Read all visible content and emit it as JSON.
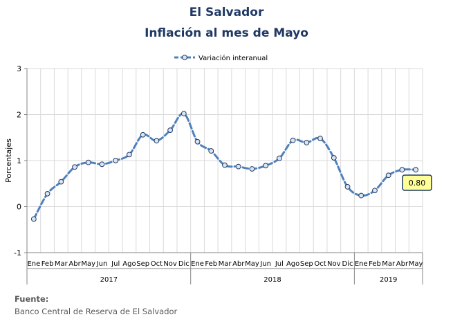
{
  "header": {
    "title": "El Salvador",
    "subtitle": "Inflación al mes de Mayo"
  },
  "footer": {
    "source_label": "Fuente:",
    "source_text": "Banco Central de Reserva de El Salvador"
  },
  "chart_data": {
    "type": "line",
    "ylabel": "Porcentajes",
    "ylim": [
      -1,
      3
    ],
    "yticks": [
      "-1",
      "0",
      "1",
      "2",
      "3"
    ],
    "grid": true,
    "legend_position": "top-center",
    "categories": [
      "Ene",
      "Feb",
      "Mar",
      "Abr",
      "May",
      "Jun",
      "Jul",
      "Ago",
      "Sep",
      "Oct",
      "Nov",
      "Dic",
      "Ene",
      "Feb",
      "Mar",
      "Abr",
      "May",
      "Jun",
      "Jul",
      "Ago",
      "Sep",
      "Oct",
      "Nov",
      "Dic",
      "Ene",
      "Feb",
      "Mar",
      "Abr",
      "May"
    ],
    "years": [
      {
        "label": "2017",
        "count": 12
      },
      {
        "label": "2018",
        "count": 12
      },
      {
        "label": "2019",
        "count": 5
      }
    ],
    "series": [
      {
        "name": "Variación interanual",
        "color": "#4f81bd",
        "values": [
          -0.27,
          0.28,
          0.54,
          0.86,
          0.96,
          0.92,
          1.0,
          1.13,
          1.56,
          1.43,
          1.66,
          2.02,
          1.41,
          1.21,
          0.9,
          0.87,
          0.82,
          0.89,
          1.05,
          1.44,
          1.39,
          1.48,
          1.06,
          0.43,
          0.24,
          0.35,
          0.68,
          0.8,
          0.8
        ]
      }
    ],
    "annotation": {
      "text": "0.80",
      "fill": "#ffff99",
      "border": "#1f3864"
    }
  }
}
